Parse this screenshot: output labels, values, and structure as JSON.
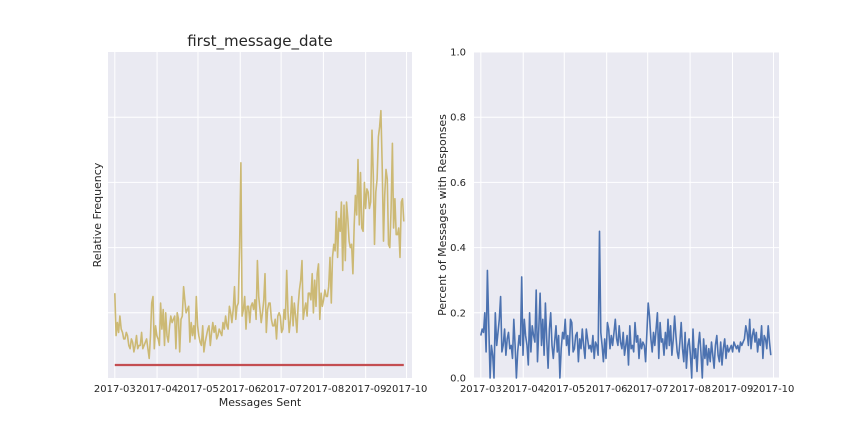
{
  "colors": {
    "panel_bg": "#EAEAF2",
    "grid": "#FFFFFF",
    "left_line": "#CCB974",
    "left_baseline": "#C44E52",
    "right_line": "#4C72B0"
  },
  "chart_data": [
    {
      "type": "line",
      "title": "first_message_date",
      "xlabel": "Messages Sent",
      "ylabel": "Relative Frequency",
      "xlim": [
        "2017-02-24",
        "2017-10-05"
      ],
      "ylim": [
        0,
        1
      ],
      "x_ticks": [
        "2017-03",
        "2017-04",
        "2017-05",
        "2017-06",
        "2017-07",
        "2017-08",
        "2017-09",
        "2017-10"
      ],
      "y_ticks_shown": false,
      "grid": true,
      "series": [
        {
          "x_start": "2017-03-01",
          "x_end": "2017-09-29",
          "values": [
            0.26,
            0.13,
            0.17,
            0.14,
            0.19,
            0.15,
            0.14,
            0.12,
            0.12,
            0.14,
            0.13,
            0.1,
            0.09,
            0.12,
            0.11,
            0.08,
            0.1,
            0.13,
            0.09,
            0.1,
            0.1,
            0.14,
            0.09,
            0.1,
            0.11,
            0.12,
            0.09,
            0.06,
            0.13,
            0.23,
            0.25,
            0.09,
            0.16,
            0.13,
            0.12,
            0.1,
            0.23,
            0.15,
            0.21,
            0.1,
            0.2,
            0.13,
            0.11,
            0.16,
            0.19,
            0.17,
            0.18,
            0.19,
            0.09,
            0.2,
            0.18,
            0.08,
            0.18,
            0.19,
            0.28,
            0.24,
            0.2,
            0.21,
            0.22,
            0.11,
            0.17,
            0.13,
            0.16,
            0.12,
            0.25,
            0.16,
            0.13,
            0.11,
            0.1,
            0.16,
            0.08,
            0.11,
            0.13,
            0.15,
            0.16,
            0.1,
            0.14,
            0.17,
            0.14,
            0.16,
            0.12,
            0.13,
            0.15,
            0.14,
            0.13,
            0.17,
            0.15,
            0.19,
            0.16,
            0.15,
            0.22,
            0.2,
            0.17,
            0.21,
            0.28,
            0.18,
            0.22,
            0.23,
            0.4,
            0.66,
            0.19,
            0.21,
            0.25,
            0.15,
            0.22,
            0.22,
            0.17,
            0.22,
            0.23,
            0.21,
            0.24,
            0.18,
            0.36,
            0.25,
            0.21,
            0.17,
            0.2,
            0.24,
            0.32,
            0.14,
            0.21,
            0.23,
            0.23,
            0.18,
            0.16,
            0.16,
            0.18,
            0.12,
            0.19,
            0.2,
            0.19,
            0.14,
            0.15,
            0.21,
            0.18,
            0.33,
            0.2,
            0.14,
            0.18,
            0.25,
            0.16,
            0.23,
            0.19,
            0.14,
            0.22,
            0.27,
            0.3,
            0.36,
            0.18,
            0.21,
            0.23,
            0.19,
            0.26,
            0.26,
            0.24,
            0.32,
            0.2,
            0.3,
            0.22,
            0.32,
            0.35,
            0.18,
            0.26,
            0.22,
            0.24,
            0.27,
            0.25,
            0.25,
            0.28,
            0.37,
            0.23,
            0.37,
            0.41,
            0.39,
            0.51,
            0.37,
            0.49,
            0.45,
            0.54,
            0.33,
            0.53,
            0.36,
            0.54,
            0.49,
            0.42,
            0.4,
            0.41,
            0.32,
            0.47,
            0.56,
            0.5,
            0.67,
            0.47,
            0.63,
            0.46,
            0.45,
            0.6,
            0.52,
            0.58,
            0.57,
            0.52,
            0.54,
            0.76,
            0.62,
            0.41,
            0.57,
            0.61,
            0.74,
            0.77,
            0.82,
            0.65,
            0.42,
            0.56,
            0.64,
            0.61,
            0.41,
            0.4,
            0.52,
            0.72,
            0.46,
            0.55,
            0.44,
            0.44,
            0.46,
            0.37,
            0.54,
            0.55,
            0.48
          ]
        },
        {
          "x_start": "2017-03-01",
          "x_end": "2017-09-29",
          "values": [
            0.04,
            0.04
          ]
        }
      ]
    },
    {
      "type": "line",
      "title": "",
      "xlabel": "",
      "ylabel": "Percent of Messages with Responses",
      "xlim": [
        "2017-02-24",
        "2017-10-05"
      ],
      "ylim": [
        0,
        1
      ],
      "x_ticks": [
        "2017-03",
        "2017-04",
        "2017-05",
        "2017-06",
        "2017-07",
        "2017-08",
        "2017-09",
        "2017-10"
      ],
      "y_ticks": [
        "0.0",
        "0.2",
        "0.4",
        "0.6",
        "0.8",
        "1.0"
      ],
      "grid": true,
      "series": [
        {
          "x_start": "2017-03-01",
          "x_end": "2017-09-29",
          "values": [
            0.13,
            0.15,
            0.14,
            0.2,
            0.08,
            0.33,
            0.17,
            0.0,
            0.1,
            0.07,
            0.0,
            0.2,
            0.1,
            0.14,
            0.18,
            0.25,
            0.08,
            0.1,
            0.15,
            0.07,
            0.12,
            0.14,
            0.09,
            0.1,
            0.06,
            0.18,
            0.1,
            0.0,
            0.08,
            0.13,
            0.1,
            0.31,
            0.07,
            0.18,
            0.13,
            0.1,
            0.04,
            0.2,
            0.08,
            0.16,
            0.13,
            0.11,
            0.27,
            0.05,
            0.15,
            0.26,
            0.1,
            0.18,
            0.07,
            0.23,
            0.12,
            0.03,
            0.15,
            0.2,
            0.1,
            0.06,
            0.11,
            0.16,
            0.08,
            0.13,
            0.0,
            0.09,
            0.14,
            0.12,
            0.18,
            0.1,
            0.13,
            0.07,
            0.18,
            0.17,
            0.08,
            0.09,
            0.13,
            0.14,
            0.05,
            0.12,
            0.09,
            0.15,
            0.1,
            0.06,
            0.15,
            0.12,
            0.09,
            0.1,
            0.08,
            0.13,
            0.06,
            0.11,
            0.1,
            0.07,
            0.45,
            0.14,
            0.1,
            0.05,
            0.12,
            0.06,
            0.17,
            0.15,
            0.09,
            0.13,
            0.1,
            0.14,
            0.18,
            0.12,
            0.1,
            0.16,
            0.11,
            0.09,
            0.14,
            0.07,
            0.1,
            0.13,
            0.04,
            0.16,
            0.09,
            0.1,
            0.08,
            0.17,
            0.11,
            0.13,
            0.06,
            0.12,
            0.09,
            0.11,
            0.1,
            0.05,
            0.14,
            0.23,
            0.19,
            0.12,
            0.08,
            0.14,
            0.1,
            0.15,
            0.2,
            0.06,
            0.17,
            0.11,
            0.12,
            0.07,
            0.14,
            0.09,
            0.18,
            0.1,
            0.16,
            0.07,
            0.12,
            0.19,
            0.13,
            0.08,
            0.06,
            0.11,
            0.17,
            0.09,
            0.05,
            0.14,
            0.03,
            0.1,
            0.12,
            0.07,
            0.0,
            0.15,
            0.06,
            0.09,
            0.02,
            0.1,
            0.14,
            0.08,
            0.0,
            0.12,
            0.06,
            0.1,
            0.04,
            0.09,
            0.05,
            0.11,
            0.07,
            0.03,
            0.1,
            0.13,
            0.07,
            0.05,
            0.11,
            0.04,
            0.09,
            0.12,
            0.06,
            0.1,
            0.08,
            0.09,
            0.1,
            0.08,
            0.11,
            0.1,
            0.09,
            0.1,
            0.08,
            0.11,
            0.1,
            0.11,
            0.12,
            0.16,
            0.14,
            0.1,
            0.18,
            0.09,
            0.13,
            0.15,
            0.11,
            0.14,
            0.08,
            0.12,
            0.1,
            0.16,
            0.06,
            0.13,
            0.12,
            0.09,
            0.16,
            0.11,
            0.07
          ]
        }
      ]
    }
  ]
}
